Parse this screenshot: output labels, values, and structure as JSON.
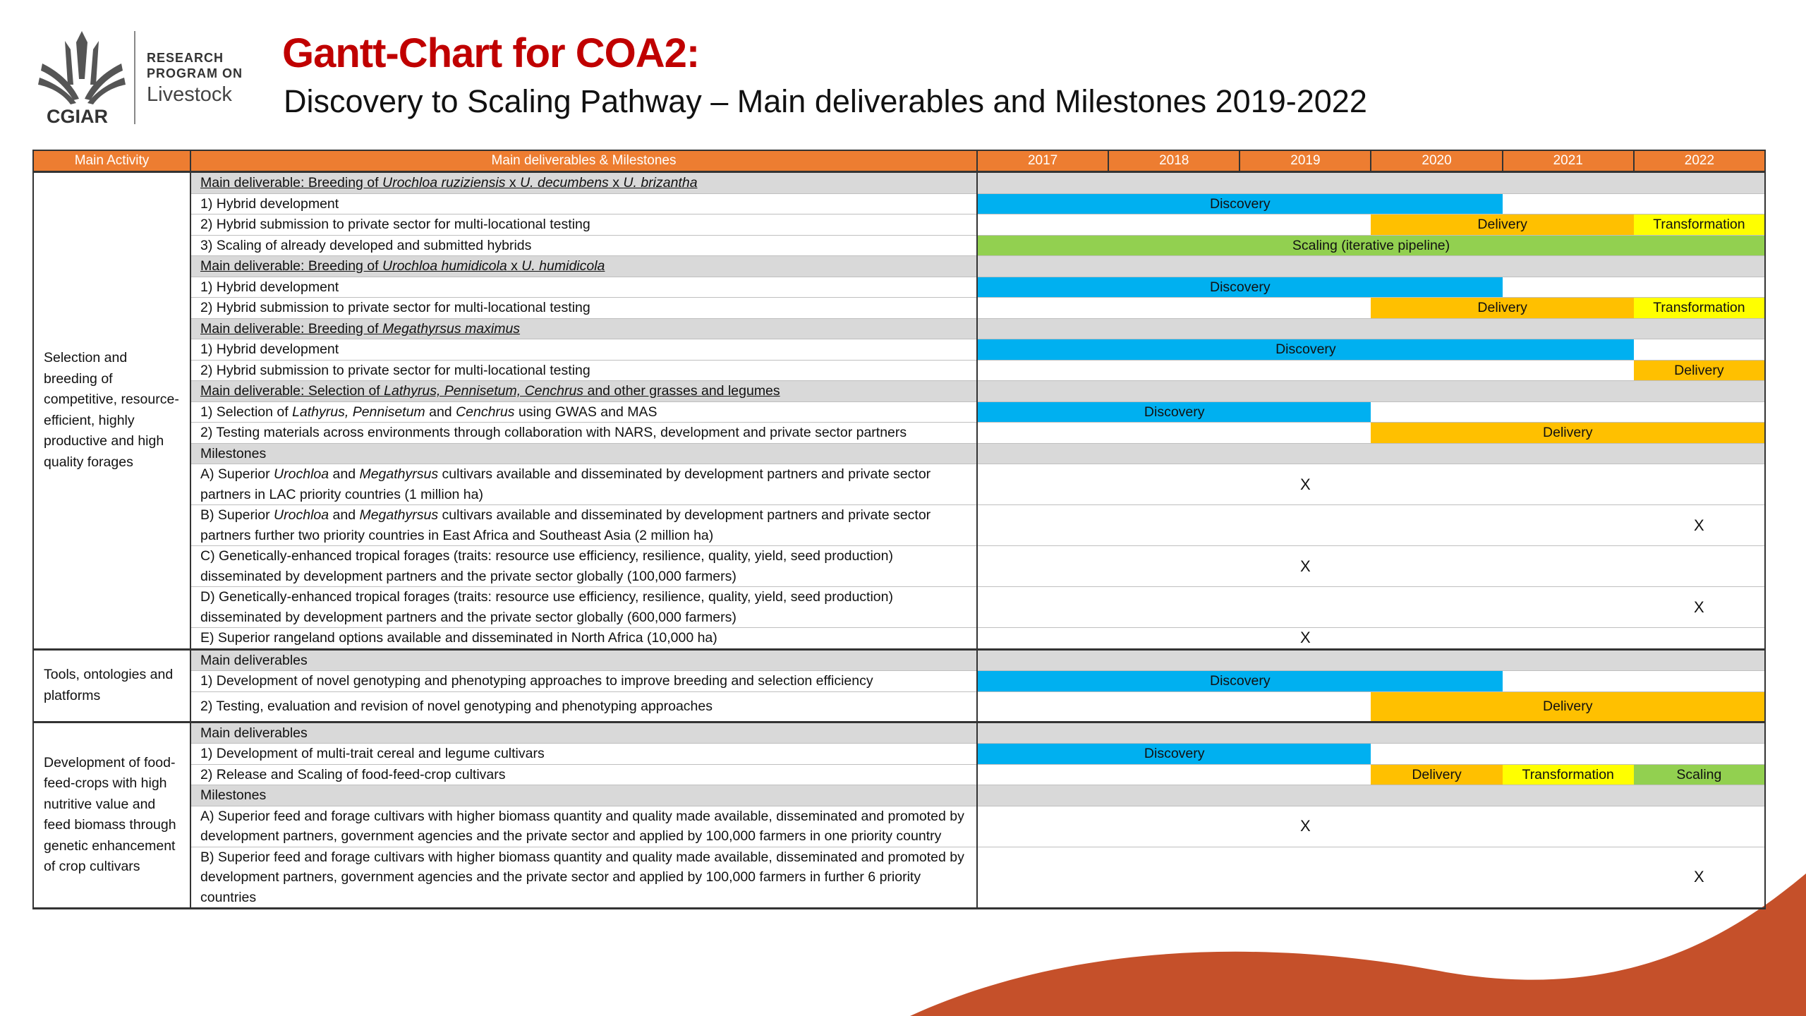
{
  "header": {
    "logo_text": "CGIAR",
    "program": [
      "RESEARCH",
      "PROGRAM ON"
    ],
    "program_name": "Livestock",
    "title": "Gantt-Chart for COA2:",
    "subtitle": "Discovery to Scaling Pathway – Main deliverables and Milestones 2019-2022"
  },
  "table": {
    "columns": [
      "Main Activity",
      "Main deliverables & Milestones"
    ],
    "years": [
      "2017",
      "2018",
      "2019",
      "2020",
      "2021",
      "2022"
    ],
    "groups": [
      {
        "activity": "Selection and breeding of competitive, resource-efficient, highly productive and high quality forages",
        "rows": [
          {
            "style": "heading",
            "underline": true,
            "parts": [
              {
                "text": "Main deliverable: Breeding of "
              },
              {
                "text": "Urochloa ruziziensis",
                "italic": true
              },
              {
                "text": " x "
              },
              {
                "text": "U. decumbens",
                "italic": true
              },
              {
                "text": " x "
              },
              {
                "text": "U. brizantha",
                "italic": true
              }
            ],
            "spans": []
          },
          {
            "text": "1) Hybrid development",
            "spans": [
              {
                "start": "2017",
                "end": "2020",
                "label": "Discovery",
                "color": "#00b0f0"
              }
            ]
          },
          {
            "text": "2) Hybrid submission to private sector for multi-locational testing",
            "spans": [
              {
                "start": "2020",
                "end": "2021",
                "label": "Delivery",
                "color": "#ffc000"
              },
              {
                "start": "2022",
                "end": "2022",
                "label": "Transformation",
                "color": "#ffff00"
              }
            ]
          },
          {
            "text": "3) Scaling of already developed and submitted hybrids",
            "spans": [
              {
                "start": "2017",
                "end": "2022",
                "label": "Scaling (iterative pipeline)",
                "color": "#92d050"
              }
            ]
          },
          {
            "style": "heading",
            "underline": true,
            "parts": [
              {
                "text": "Main deliverable: Breeding of "
              },
              {
                "text": "Urochloa humidicola",
                "italic": true
              },
              {
                "text": " x "
              },
              {
                "text": "U. humidicola",
                "italic": true
              }
            ],
            "spans": []
          },
          {
            "text": "1) Hybrid development",
            "spans": [
              {
                "start": "2017",
                "end": "2020",
                "label": "Discovery",
                "color": "#00b0f0"
              }
            ]
          },
          {
            "text": "2) Hybrid submission to private sector for multi-locational testing",
            "spans": [
              {
                "start": "2020",
                "end": "2021",
                "label": "Delivery",
                "color": "#ffc000"
              },
              {
                "start": "2022",
                "end": "2022",
                "label": "Transformation",
                "color": "#ffff00"
              }
            ]
          },
          {
            "style": "heading",
            "underline": true,
            "parts": [
              {
                "text": "Main deliverable: Breeding of "
              },
              {
                "text": "Megathyrsus maximus",
                "italic": true
              }
            ],
            "spans": []
          },
          {
            "text": "1) Hybrid development",
            "spans": [
              {
                "start": "2017",
                "end": "2021",
                "label": "Discovery",
                "color": "#00b0f0"
              }
            ]
          },
          {
            "text": "2) Hybrid submission to private sector for multi-locational testing",
            "spans": [
              {
                "start": "2022",
                "end": "2022",
                "label": "Delivery",
                "color": "#ffc000"
              }
            ]
          },
          {
            "style": "heading",
            "underline": true,
            "parts": [
              {
                "text": "Main deliverable: Selection of "
              },
              {
                "text": "Lathyrus, Pennisetum, Cenchrus",
                "italic": true
              },
              {
                "text": " and other grasses and legumes"
              }
            ],
            "spans": []
          },
          {
            "parts": [
              {
                "text": "1) Selection of "
              },
              {
                "text": "Lathyrus, Pennisetum",
                "italic": true
              },
              {
                "text": " and "
              },
              {
                "text": "Cenchrus",
                "italic": true
              },
              {
                "text": " using GWAS and MAS"
              }
            ],
            "spans": [
              {
                "start": "2017",
                "end": "2019",
                "label": "Discovery",
                "color": "#00b0f0"
              }
            ]
          },
          {
            "text": "2) Testing materials across environments through collaboration with NARS, development and private sector partners",
            "spans": [
              {
                "start": "2020",
                "end": "2022",
                "label": "Delivery",
                "color": "#ffc000"
              }
            ]
          },
          {
            "style": "heading",
            "text": "Milestones",
            "spans": []
          },
          {
            "parts": [
              {
                "text": "A) Superior "
              },
              {
                "text": "Urochloa",
                "italic": true
              },
              {
                "text": " and "
              },
              {
                "text": "Megathyrsus",
                "italic": true
              },
              {
                "text": " cultivars available and disseminated by development partners and private sector partners in LAC priority countries (1 million ha)"
              }
            ],
            "spans": [
              {
                "start": "2019",
                "end": "2019",
                "label": "X"
              }
            ]
          },
          {
            "parts": [
              {
                "text": "B) Superior "
              },
              {
                "text": "Urochloa",
                "italic": true
              },
              {
                "text": " and "
              },
              {
                "text": "Megathyrsus",
                "italic": true
              },
              {
                "text": " cultivars available and disseminated by development partners and private sector partners further two priority countries in East Africa and Southeast Asia (2 million ha)"
              }
            ],
            "spans": [
              {
                "start": "2022",
                "end": "2022",
                "label": "X"
              }
            ]
          },
          {
            "text": "C) Genetically-enhanced tropical forages (traits: resource use efficiency, resilience, quality, yield, seed production) disseminated by development partners and the private sector globally (100,000 farmers)",
            "spans": [
              {
                "start": "2019",
                "end": "2019",
                "label": "X"
              }
            ]
          },
          {
            "text": "D) Genetically-enhanced tropical forages (traits: resource use efficiency, resilience, quality, yield, seed production) disseminated by development partners and the private sector globally (600,000 farmers)",
            "spans": [
              {
                "start": "2022",
                "end": "2022",
                "label": "X"
              }
            ]
          },
          {
            "text": "E) Superior rangeland options available and disseminated in North Africa (10,000 ha)",
            "spans": [
              {
                "start": "2019",
                "end": "2019",
                "label": "X"
              }
            ]
          }
        ]
      },
      {
        "activity": "Tools, ontologies and platforms",
        "rows": [
          {
            "style": "heading",
            "text": "Main deliverables",
            "spans": []
          },
          {
            "text": "1) Development of novel genotyping and phenotyping approaches to improve breeding and selection efficiency",
            "spans": [
              {
                "start": "2017",
                "end": "2020",
                "label": "Discovery",
                "color": "#00b0f0"
              }
            ]
          },
          {
            "text": "2) Testing, evaluation and revision of novel genotyping and phenotyping approaches",
            "tall": true,
            "spans": [
              {
                "start": "2020",
                "end": "2022",
                "label": "Delivery",
                "color": "#ffc000"
              }
            ]
          }
        ]
      },
      {
        "activity": "Development of food-feed-crops with high nutritive value and feed biomass through genetic enhancement of crop cultivars",
        "rows": [
          {
            "style": "heading",
            "text": "Main deliverables",
            "spans": []
          },
          {
            "text": "1) Development of multi-trait cereal and legume cultivars",
            "spans": [
              {
                "start": "2017",
                "end": "2019",
                "label": "Discovery",
                "color": "#00b0f0"
              }
            ]
          },
          {
            "text": "2) Release and Scaling of food-feed-crop cultivars",
            "spans": [
              {
                "start": "2020",
                "end": "2020",
                "label": "Delivery",
                "color": "#ffc000"
              },
              {
                "start": "2021",
                "end": "2021",
                "label": "Transformation",
                "color": "#ffff00"
              },
              {
                "start": "2022",
                "end": "2022",
                "label": "Scaling",
                "color": "#92d050"
              }
            ]
          },
          {
            "style": "heading",
            "text": "Milestones",
            "spans": []
          },
          {
            "text": "A) Superior feed and forage cultivars with higher biomass quantity and quality made available, disseminated and promoted by development partners, government agencies and the private sector and applied by 100,000 farmers in one priority country",
            "spans": [
              {
                "start": "2019",
                "end": "2019",
                "label": "X"
              }
            ]
          },
          {
            "text": "B) Superior feed and forage cultivars with higher biomass quantity and quality made available, disseminated and promoted by development partners, government agencies and the private sector and applied by 100,000 farmers in further 6 priority countries",
            "spans": [
              {
                "start": "2022",
                "end": "2022",
                "label": "X"
              }
            ]
          }
        ]
      }
    ]
  }
}
